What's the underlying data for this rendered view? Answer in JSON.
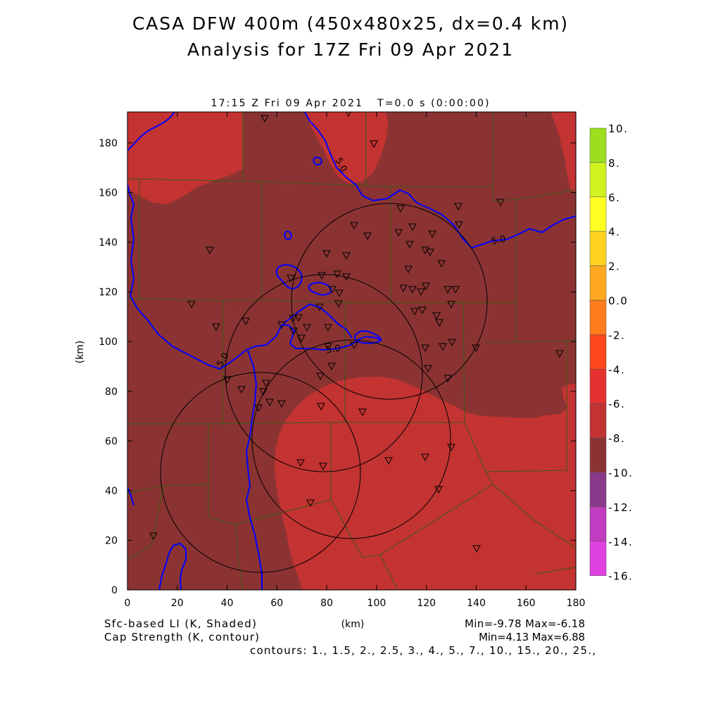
{
  "figure": {
    "title_line1": "CASA DFW 400m (450x480x25, dx=0.4 km)",
    "title_line2": "Analysis for 17Z Fri 09 Apr 2021",
    "valid_time": "17:15 Z Fri 09 Apr 2021   T=0.0 s (0:00:00)"
  },
  "axes": {
    "x_label": "(km)",
    "y_label": "(km)",
    "x_ticks": [
      "0",
      "20",
      "40",
      "60",
      "80",
      "100",
      "120",
      "140",
      "160",
      "180"
    ],
    "y_ticks": [
      "0",
      "20",
      "40",
      "60",
      "80",
      "100",
      "120",
      "140",
      "160",
      "180"
    ],
    "x_range": [
      0,
      180
    ],
    "y_range": [
      0,
      192
    ]
  },
  "shaded_field": {
    "label": "Sfc-based LI (K, Shaded)",
    "stats": "Min=-9.78 Max=-6.18"
  },
  "contour_field": {
    "label": "Cap Strength (K, contour)",
    "stats": "Min=4.13 Max=6.88",
    "levels_text": "contours: 1., 1.5, 2., 2.5, 3., 4., 5., 7., 10., 15., 20., 25.,",
    "line_labels": [
      "5.0",
      "5.0",
      "5.0",
      "5.0"
    ]
  },
  "colorbar": {
    "labels": [
      "10.",
      "8.",
      "6.",
      "4.",
      "2.",
      "0.0",
      "-2.",
      "-4.",
      "-6.",
      "-8.",
      "-10.",
      "-12.",
      "-14.",
      "-16."
    ],
    "colors": [
      "#9bdf1f",
      "#d0f21f",
      "#ffff24",
      "#ffd320",
      "#ffa71e",
      "#ff7c1c",
      "#ff481c",
      "#e63131",
      "#c23331",
      "#8b3333",
      "#8a3a8a",
      "#c13cc1",
      "#e042e0"
    ]
  },
  "colors": {
    "li_light": "#c23331",
    "li_dark": "#8b3333",
    "county_lines": "#3b5a16",
    "contour": "#0000ff",
    "rings": "#000000",
    "stations": "#000000"
  }
}
